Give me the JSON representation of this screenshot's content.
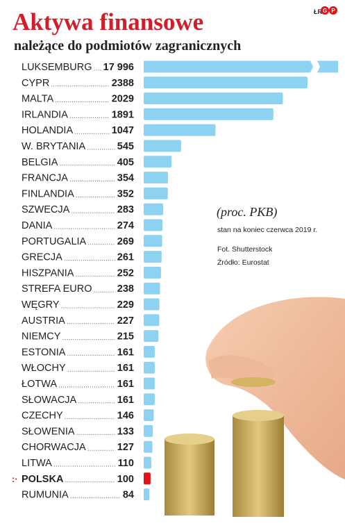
{
  "header": {
    "title": "Aktywa finansowe",
    "subtitle": "należące do podmiotów zagranicznych",
    "brand": "ŁR"
  },
  "notes": {
    "unit": "(proc. PKB)",
    "date": "stan na koniec czerwca 2019 r.",
    "photo": "Fot. Shutterstock",
    "source": "Źródło: Eurostat"
  },
  "colors": {
    "bar": "#8dd3f1",
    "highlight": "#e0121b",
    "title": "#d01f2a"
  },
  "chart_data": {
    "type": "bar",
    "orientation": "horizontal",
    "broken_axis_for": "LUKSEMBURG",
    "highlight": "POLSKA",
    "categories": [
      "LUKSEMBURG",
      "CYPR",
      "MALTA",
      "IRLANDIA",
      "HOLANDIA",
      "W. BRYTANIA",
      "BELGIA",
      "FRANCJA",
      "FINLANDIA",
      "SZWECJA",
      "DANIA",
      "PORTUGALIA",
      "GRECJA",
      "HISZPANIA",
      "STREFA EURO",
      "WĘGRY",
      "AUSTRIA",
      "NIEMCY",
      "ESTONIA",
      "WŁOCHY",
      "ŁOTWA",
      "SŁOWACJA",
      "CZECHY",
      "SŁOWENIA",
      "CHORWACJA",
      "LITWA",
      "POLSKA",
      "RUMUNIA"
    ],
    "values": [
      17996,
      2388,
      2029,
      1891,
      1047,
      545,
      405,
      354,
      352,
      283,
      274,
      269,
      261,
      252,
      238,
      229,
      227,
      215,
      161,
      161,
      161,
      161,
      146,
      133,
      127,
      110,
      100,
      84
    ],
    "value_labels": [
      "17 996",
      "2388",
      "2029",
      "1891",
      "1047",
      "545",
      "405",
      "354",
      "352",
      "283",
      "274",
      "269",
      "261",
      "252",
      "238",
      "229",
      "227",
      "215",
      "161",
      "161",
      "161",
      "161",
      "146",
      "133",
      "127",
      "110",
      "100",
      "84"
    ]
  }
}
